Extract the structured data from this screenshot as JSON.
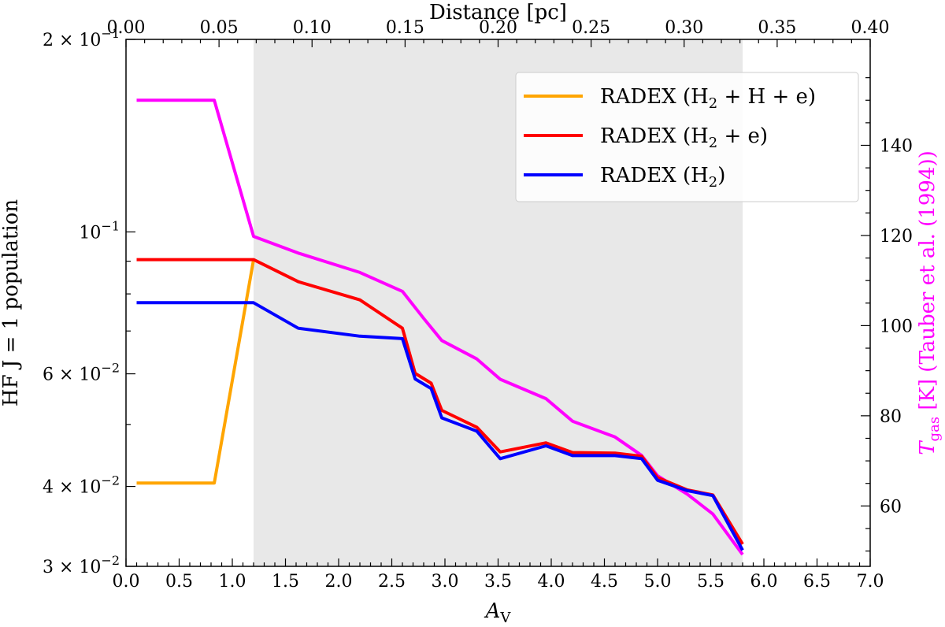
{
  "chart_data": {
    "type": "line",
    "x_bottom": {
      "label": "A",
      "label_sub": "V",
      "range": [
        0.0,
        7.0
      ],
      "ticks": [
        "0.0",
        "0.5",
        "1.0",
        "1.5",
        "2.0",
        "2.5",
        "3.0",
        "3.5",
        "4.0",
        "4.5",
        "5.0",
        "5.5",
        "6.0",
        "6.5",
        "7.0"
      ]
    },
    "x_top": {
      "label": "Distance [pc]",
      "range": [
        0.0,
        0.4
      ],
      "ticks": [
        "0.00",
        "0.05",
        "0.10",
        "0.15",
        "0.20",
        "0.25",
        "0.30",
        "0.35",
        "0.40"
      ]
    },
    "y_left": {
      "label": "HF J = 1 population",
      "scale": "log",
      "range": [
        0.03,
        0.2
      ],
      "tick_labels": [
        {
          "value": 0.2,
          "mant": "2",
          "exp": "−1"
        },
        {
          "value": 0.1,
          "mant": "",
          "exp": "−1"
        },
        {
          "value": 0.06,
          "mant": "6",
          "exp": "−2"
        },
        {
          "value": 0.04,
          "mant": "4",
          "exp": "−2"
        },
        {
          "value": 0.03,
          "mant": "3",
          "exp": "−2"
        }
      ],
      "minor_ticks": [
        0.05,
        0.07,
        0.08,
        0.09
      ]
    },
    "y_right": {
      "label": "T",
      "label_sub": "gas",
      "label_rest": " [K] (Tauber et al. (1994))",
      "color": "#ff00ff",
      "range": [
        46.6,
        163.5
      ],
      "ticks": [
        "60",
        "80",
        "100",
        "120",
        "140"
      ]
    },
    "shaded_region": {
      "x0": 1.2,
      "x1": 5.8,
      "color": "#e8e8e8"
    },
    "series": [
      {
        "name": "RADEX (H₂ + H + e)",
        "name_main": "RADEX (H",
        "name_sub": "2",
        "name_rest": " + H + e)",
        "color": "#ffa500",
        "axis": "left",
        "x": [
          0.1,
          0.83,
          1.2
        ],
        "y": [
          0.0405,
          0.0405,
          0.0905
        ]
      },
      {
        "name": "RADEX (H₂ + e)",
        "name_main": "RADEX (H",
        "name_sub": "2",
        "name_rest": " + e)",
        "color": "#ff0000",
        "axis": "left",
        "x": [
          0.1,
          1.2,
          1.62,
          2.2,
          2.6,
          2.72,
          2.87,
          2.97,
          3.3,
          3.52,
          3.95,
          4.2,
          4.6,
          4.85,
          5.0,
          5.28,
          5.52,
          5.8
        ],
        "y": [
          0.0905,
          0.0905,
          0.0836,
          0.0783,
          0.0707,
          0.0601,
          0.058,
          0.0526,
          0.0495,
          0.0453,
          0.0468,
          0.0452,
          0.0451,
          0.0446,
          0.0413,
          0.0395,
          0.0388,
          0.0325
        ]
      },
      {
        "name": "RADEX (H₂)",
        "name_main": "RADEX (H",
        "name_sub": "2",
        "name_rest": ")",
        "color": "#0000ff",
        "axis": "left",
        "x": [
          0.1,
          1.2,
          1.62,
          2.2,
          2.6,
          2.72,
          2.87,
          2.97,
          3.3,
          3.52,
          3.95,
          4.2,
          4.6,
          4.85,
          5.0,
          5.28,
          5.52,
          5.8
        ],
        "y": [
          0.0775,
          0.0775,
          0.0707,
          0.0687,
          0.0681,
          0.0589,
          0.0569,
          0.0512,
          0.0488,
          0.0442,
          0.0463,
          0.0447,
          0.0447,
          0.0442,
          0.0409,
          0.0394,
          0.0387,
          0.0318
        ]
      },
      {
        "name": "T_gas",
        "color": "#ff00ff",
        "axis": "right",
        "x": [
          0.1,
          0.83,
          1.2,
          1.62,
          2.2,
          2.6,
          2.8,
          2.97,
          3.3,
          3.52,
          3.95,
          4.2,
          4.6,
          4.85,
          5.0,
          5.28,
          5.52,
          5.8
        ],
        "y": [
          150.0,
          150.0,
          119.8,
          116.1,
          111.8,
          107.6,
          101.6,
          96.7,
          92.6,
          88.1,
          83.8,
          78.8,
          75.3,
          71.2,
          66.7,
          62.6,
          58.2,
          49.2
        ]
      }
    ]
  }
}
